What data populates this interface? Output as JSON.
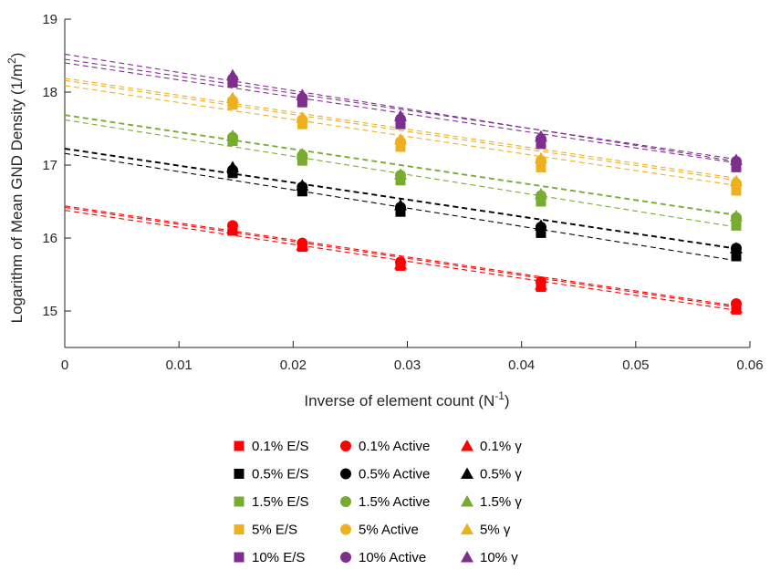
{
  "chart_data": {
    "type": "scatter",
    "xlabel": "Inverse of element count (N",
    "xlabel_sup": "-1",
    "xlabel_close": ")",
    "ylabel": "Logarithm of Mean GND Density (1/m",
    "ylabel_sup": "2",
    "ylabel_close": ")",
    "xlim": [
      0,
      0.06
    ],
    "ylim": [
      14.5,
      19
    ],
    "x_ticks": [
      0,
      0.01,
      0.02,
      0.03,
      0.04,
      0.05,
      0.06
    ],
    "x_tick_labels": [
      "0",
      "0.01",
      "0.02",
      "0.03",
      "0.04",
      "0.05",
      "0.06"
    ],
    "y_ticks": [
      15,
      16,
      17,
      18,
      19
    ],
    "y_tick_labels": [
      "15",
      "16",
      "17",
      "18",
      "19"
    ],
    "x": [
      0.0147,
      0.0208,
      0.0294,
      0.0417,
      0.0588
    ],
    "groups": [
      {
        "name": "0.1%",
        "color": "#ff0000",
        "series": [
          {
            "label": "0.1% E/S",
            "marker": "square",
            "values": [
              16.1,
              15.88,
              15.62,
              15.33,
              15.02
            ],
            "fit": {
              "intercept": 16.38,
              "slope": -23.3
            }
          },
          {
            "label": "0.1% Active",
            "marker": "circle",
            "values": [
              16.17,
              15.93,
              15.67,
              15.4,
              15.1
            ],
            "fit": {
              "intercept": 16.44,
              "slope": -23.3
            }
          },
          {
            "label": "0.1% γ",
            "marker": "triangle",
            "values": [
              16.13,
              15.9,
              15.64,
              15.36,
              15.04
            ],
            "fit": {
              "intercept": 16.42,
              "slope": -23.3
            }
          }
        ]
      },
      {
        "name": "0.5%",
        "color": "#000000",
        "series": [
          {
            "label": "0.5% E/S",
            "marker": "square",
            "values": [
              16.89,
              16.64,
              16.36,
              16.07,
              15.75
            ],
            "fit": {
              "intercept": 17.16,
              "slope": -25.0
            }
          },
          {
            "label": "0.5% Active",
            "marker": "circle",
            "values": [
              16.93,
              16.7,
              16.42,
              16.15,
              15.86
            ],
            "fit": {
              "intercept": 17.22,
              "slope": -23.3
            }
          },
          {
            "label": "0.5% γ",
            "marker": "triangle",
            "values": [
              16.97,
              16.72,
              16.45,
              16.17,
              15.86
            ],
            "fit": {
              "intercept": 17.23,
              "slope": -23.3
            }
          }
        ]
      },
      {
        "name": "1.5%",
        "color": "#77ac30",
        "series": [
          {
            "label": "1.5% E/S",
            "marker": "square",
            "values": [
              17.33,
              17.06,
              16.79,
              16.5,
              16.17
            ],
            "fit": {
              "intercept": 17.62,
              "slope": -25.0
            }
          },
          {
            "label": "1.5% Active",
            "marker": "circle",
            "values": [
              17.38,
              17.13,
              16.86,
              16.58,
              16.28
            ],
            "fit": {
              "intercept": 17.68,
              "slope": -23.3
            }
          },
          {
            "label": "1.5% γ",
            "marker": "triangle",
            "values": [
              17.4,
              17.15,
              16.87,
              16.6,
              16.3
            ],
            "fit": {
              "intercept": 17.69,
              "slope": -23.3
            }
          }
        ]
      },
      {
        "name": "5%",
        "color": "#edb120",
        "series": [
          {
            "label": "5% E/S",
            "marker": "square",
            "values": [
              17.83,
              17.56,
              17.25,
              16.97,
              16.65
            ],
            "fit": {
              "intercept": 18.09,
              "slope": -23.3
            }
          },
          {
            "label": "5% Active",
            "marker": "circle",
            "values": [
              17.88,
              17.62,
              17.32,
              17.06,
              16.75
            ],
            "fit": {
              "intercept": 18.16,
              "slope": -23.3
            }
          },
          {
            "label": "5% γ",
            "marker": "triangle",
            "values": [
              17.92,
              17.65,
              17.35,
              17.09,
              16.78
            ],
            "fit": {
              "intercept": 18.19,
              "slope": -23.3
            }
          }
        ]
      },
      {
        "name": "10%",
        "color": "#7e2f8e",
        "series": [
          {
            "label": "10% E/S",
            "marker": "square",
            "values": [
              18.13,
              17.86,
              17.56,
              17.29,
              16.97
            ],
            "fit": {
              "intercept": 18.4,
              "slope": -23.3
            }
          },
          {
            "label": "10% Active",
            "marker": "circle",
            "values": [
              18.18,
              17.92,
              17.63,
              17.36,
              17.05
            ],
            "fit": {
              "intercept": 18.45,
              "slope": -23.3
            }
          },
          {
            "label": "10% γ",
            "marker": "triangle",
            "values": [
              18.23,
              17.96,
              17.67,
              17.39,
              17.07
            ],
            "fit": {
              "intercept": 18.52,
              "slope": -25.0
            }
          }
        ]
      }
    ],
    "legend": {
      "placement": "bottom",
      "rows": [
        [
          "0.1% E/S",
          "0.1% Active",
          "0.1% γ"
        ],
        [
          "0.5% E/S",
          "0.5% Active",
          "0.5% γ"
        ],
        [
          "1.5% E/S",
          "1.5% Active",
          "1.5% γ"
        ],
        [
          "5% E/S",
          "5% Active",
          "5% γ"
        ],
        [
          "10% E/S",
          "10% Active",
          "10% γ"
        ]
      ]
    },
    "grid": false
  }
}
